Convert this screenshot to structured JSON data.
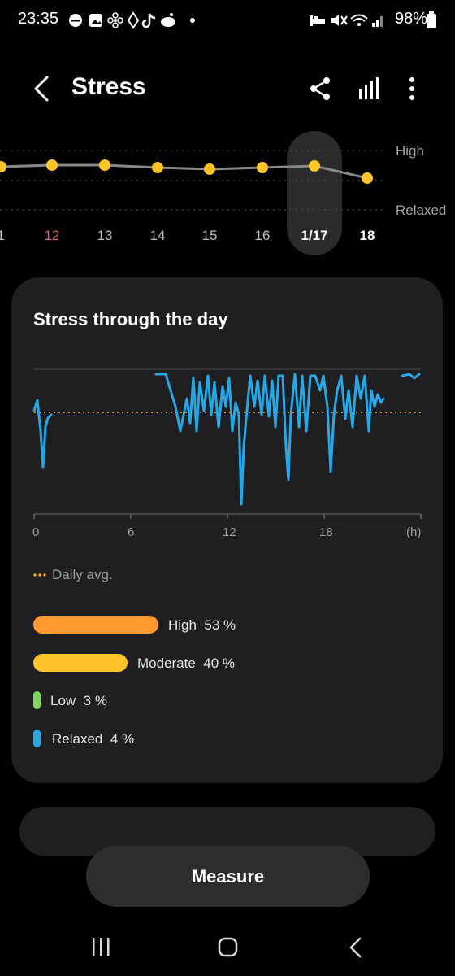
{
  "status_bar": {
    "time": "23:35",
    "battery": "98%",
    "left_icons": [
      "dnd-icon",
      "gallery-icon",
      "fan-icon",
      "diamond-icon",
      "tiktok-icon",
      "reddit-icon",
      "dot-icon"
    ],
    "right_icons": [
      "bed-icon",
      "mute-icon",
      "wifi-icon",
      "signal-icon",
      "battery-icon"
    ]
  },
  "header": {
    "title": "Stress",
    "icons": [
      "back-icon",
      "share-icon",
      "bar-chart-icon",
      "more-icon"
    ]
  },
  "weekly": {
    "high_label": "High",
    "relaxed_label": "Relaxed",
    "days": [
      {
        "label": "1",
        "color": "#bdbdbd"
      },
      {
        "label": "12",
        "color": "#e06060"
      },
      {
        "label": "13",
        "color": "#bdbdbd"
      },
      {
        "label": "14",
        "color": "#bdbdbd"
      },
      {
        "label": "15",
        "color": "#bdbdbd"
      },
      {
        "label": "16",
        "color": "#bdbdbd"
      },
      {
        "label": "1/17",
        "color": "#ffffff"
      },
      {
        "label": "18",
        "color": "#ffffff"
      }
    ],
    "selected": "1/17"
  },
  "card": {
    "title": "Stress through the day",
    "x_ticks": [
      "0",
      "6",
      "12",
      "18",
      "(h)"
    ],
    "daily_avg_label": "Daily avg.",
    "legend": [
      {
        "label": "High",
        "percent": "53 %",
        "fraction": 0.53,
        "color": "#ff9a2e"
      },
      {
        "label": "Moderate",
        "percent": "40 %",
        "fraction": 0.4,
        "color": "#ffc42a"
      },
      {
        "label": "Low",
        "percent": "3 %",
        "fraction": 0.03,
        "color": "#7ed957"
      },
      {
        "label": "Relaxed",
        "percent": "4 %",
        "fraction": 0.04,
        "color": "#25a8e8"
      }
    ]
  },
  "measure_button": "Measure",
  "nav": [
    "recents-icon",
    "home-icon",
    "back-nav-icon"
  ],
  "colors": {
    "accent": "#ffc42a",
    "high": "#ff9a2e",
    "low": "#7ed957",
    "relaxed": "#25a8e8"
  }
}
